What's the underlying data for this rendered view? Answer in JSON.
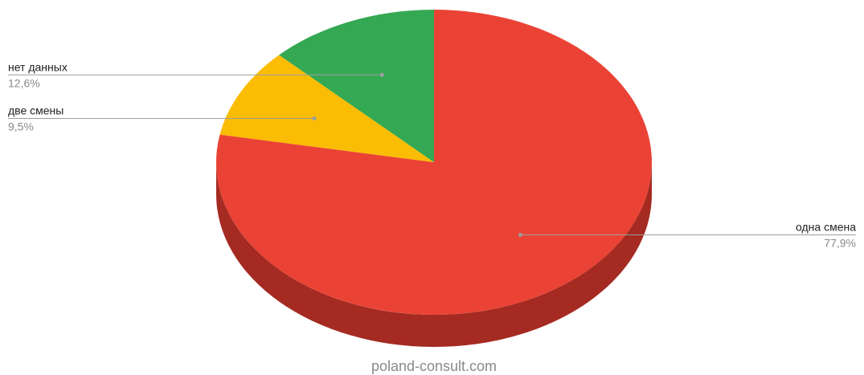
{
  "chart_data": {
    "type": "pie",
    "style": "3d",
    "categories": [
      "одна смена",
      "две смены",
      "нет данных"
    ],
    "values": [
      77.9,
      9.5,
      12.6
    ],
    "value_labels": [
      "77,9%",
      "9,5%",
      "12,6%"
    ],
    "colors": [
      "#ea4335",
      "#fbbc04",
      "#34a853"
    ],
    "side_colors": [
      "#a52a21",
      "#b08402",
      "#247438"
    ],
    "title": "",
    "legend": "labels beside slices"
  },
  "footer": {
    "source": "poland-consult.com"
  }
}
